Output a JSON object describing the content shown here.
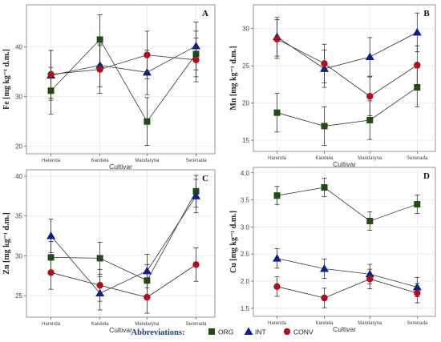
{
  "legend": {
    "title": "Abbreviations:",
    "items": [
      {
        "name": "ORG",
        "color": "#1f4d14",
        "shape": "square"
      },
      {
        "name": "INT",
        "color": "#0d1f8c",
        "shape": "triangle"
      },
      {
        "name": "CONV",
        "color": "#b00e1e",
        "shape": "circle"
      }
    ]
  },
  "chart_data": [
    {
      "type": "line",
      "panel_label": "A",
      "xlabel": "Cultivar",
      "ylabel": "Fe [mg kg⁻¹ d.m.]",
      "categories": [
        "Harenda",
        "Kandela",
        "Mandaryna",
        "Serenada"
      ],
      "ylim": [
        18.5,
        48.5
      ],
      "yticks": [
        20,
        30,
        40
      ],
      "grid": true,
      "series": [
        {
          "name": "ORG",
          "values": [
            31.2,
            41.5,
            25.0,
            38.6
          ],
          "err": [
            4.7,
            5.0,
            4.8,
            4.6
          ]
        },
        {
          "name": "INT",
          "values": [
            34.3,
            36.3,
            34.9,
            40.2
          ],
          "err": [
            5.0,
            4.3,
            4.5,
            4.8
          ]
        },
        {
          "name": "CONV",
          "values": [
            34.5,
            35.5,
            38.4,
            37.4
          ],
          "err": [
            4.8,
            4.8,
            4.8,
            4.4
          ]
        }
      ]
    },
    {
      "type": "line",
      "panel_label": "B",
      "xlabel": "Cultivar",
      "ylabel": "Mn [mg kg⁻¹ d.m.]",
      "categories": [
        "Harenda",
        "Kandela",
        "Mandaryna",
        "Serenada"
      ],
      "ylim": [
        13.5,
        33.2
      ],
      "yticks": [
        15,
        20,
        25,
        30
      ],
      "grid": true,
      "series": [
        {
          "name": "ORG",
          "values": [
            18.7,
            16.9,
            17.7,
            22.1
          ],
          "err": [
            2.6,
            2.6,
            2.6,
            2.6
          ]
        },
        {
          "name": "INT",
          "values": [
            28.9,
            24.6,
            26.2,
            29.5
          ],
          "err": [
            2.6,
            2.5,
            2.6,
            2.6
          ]
        },
        {
          "name": "CONV",
          "values": [
            28.6,
            25.3,
            20.9,
            25.1
          ],
          "err": [
            2.6,
            2.6,
            2.6,
            2.6
          ]
        }
      ]
    },
    {
      "type": "line",
      "panel_label": "C",
      "xlabel": "Cultivar",
      "ylabel": "Zn [mg kg⁻¹ d.m.]",
      "categories": [
        "Harenda",
        "Kandela",
        "Mandaryna",
        "Serenada"
      ],
      "ylim": [
        22.3,
        40.8
      ],
      "yticks": [
        25,
        30,
        35,
        40
      ],
      "grid": true,
      "series": [
        {
          "name": "ORG",
          "values": [
            29.8,
            29.7,
            26.9,
            38.1
          ],
          "err": [
            2.0,
            2.0,
            2.0,
            2.0
          ]
        },
        {
          "name": "INT",
          "values": [
            32.5,
            25.3,
            28.1,
            37.5
          ],
          "err": [
            2.1,
            2.1,
            2.1,
            2.1
          ]
        },
        {
          "name": "CONV",
          "values": [
            27.9,
            26.3,
            24.8,
            28.9
          ],
          "err": [
            2.1,
            2.0,
            2.0,
            2.1
          ]
        }
      ]
    },
    {
      "type": "line",
      "panel_label": "D",
      "xlabel": "Cultivar",
      "ylabel": "Cu [mg kg⁻¹ d.m.]",
      "categories": [
        "Harenda",
        "Kandela",
        "Mandaryna",
        "Serenada"
      ],
      "ylim": [
        1.35,
        4.1
      ],
      "yticks": [
        1.5,
        2.0,
        2.5,
        3.0,
        3.5,
        4.0
      ],
      "grid": true,
      "series": [
        {
          "name": "ORG",
          "values": [
            3.58,
            3.73,
            3.11,
            3.42
          ],
          "err": [
            0.17,
            0.17,
            0.17,
            0.17
          ]
        },
        {
          "name": "INT",
          "values": [
            2.42,
            2.23,
            2.13,
            1.89
          ],
          "err": [
            0.18,
            0.18,
            0.18,
            0.18
          ]
        },
        {
          "name": "CONV",
          "values": [
            1.9,
            1.69,
            2.04,
            1.78
          ],
          "err": [
            0.18,
            0.18,
            0.18,
            0.18
          ]
        }
      ]
    }
  ]
}
